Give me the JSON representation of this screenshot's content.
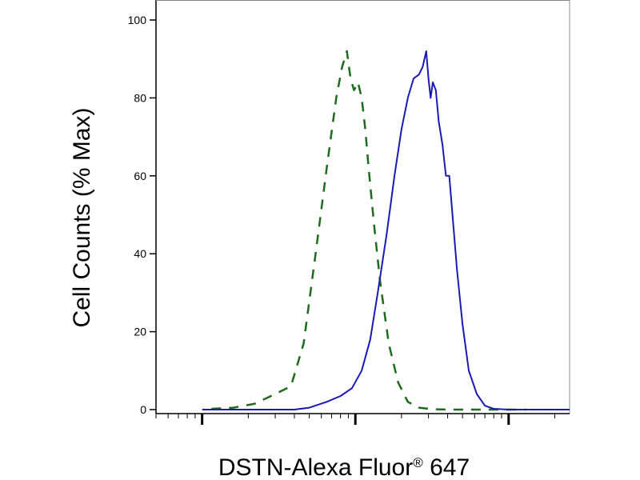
{
  "chart_data": {
    "type": "line",
    "title": "",
    "xlabel": {
      "main": "DSTN-Alexa Fluor",
      "sup": "®",
      "suffix": " 647"
    },
    "ylabel": "Cell Counts (% Max)",
    "xscale": "log",
    "xlim": [
      0.5,
      250
    ],
    "ylim": [
      0,
      100
    ],
    "yticks": [
      0,
      20,
      40,
      60,
      80,
      100
    ],
    "grid": false,
    "legend": "none",
    "series": [
      {
        "style": "dashed",
        "color": "#1e6b1e",
        "x": [
          1.15,
          1.6,
          2.2,
          3.0,
          3.8,
          4.6,
          5.5,
          6.5,
          7.5,
          8.2,
          8.8,
          9.3,
          9.8,
          10.4,
          11.0,
          11.6,
          12.2,
          13.2,
          14.5,
          16.5,
          19.0,
          22.0,
          26.0,
          32.0,
          42.0,
          60.0,
          90.0,
          130.0
        ],
        "y": [
          0.2,
          0.5,
          1.5,
          4.0,
          6.0,
          17.0,
          40.0,
          62.0,
          80.0,
          88.0,
          92.0,
          85.0,
          82.0,
          84.0,
          80.0,
          72.0,
          62.0,
          48.0,
          33.0,
          17.0,
          7.0,
          2.0,
          0.5,
          0.1,
          0.0,
          0.0,
          0.0,
          0.0
        ]
      },
      {
        "style": "solid",
        "color": "#1a1ab4",
        "x": [
          1.0,
          2.0,
          3.0,
          4.0,
          5.0,
          6.5,
          8.0,
          9.5,
          11.0,
          12.5,
          14.0,
          16.0,
          18.0,
          20.0,
          22.0,
          24.0,
          26.0,
          27.5,
          29.0,
          30.0,
          31.0,
          32.0,
          33.5,
          35.0,
          37.0,
          39.0,
          41.0,
          43.0,
          46.0,
          50.0,
          55.0,
          62.0,
          70.0,
          80.0,
          100.0,
          150.0,
          250.0
        ],
        "y": [
          0.0,
          0.0,
          0.0,
          0.0,
          0.5,
          2.0,
          3.5,
          5.5,
          10.0,
          18.0,
          30.0,
          45.0,
          60.0,
          72.0,
          80.0,
          85.0,
          86.0,
          88.0,
          92.0,
          85.0,
          80.0,
          84.0,
          82.0,
          74.0,
          68.0,
          60.0,
          60.0,
          50.0,
          36.0,
          22.0,
          10.0,
          4.0,
          1.0,
          0.2,
          0.0,
          0.0,
          0.0
        ]
      }
    ]
  }
}
